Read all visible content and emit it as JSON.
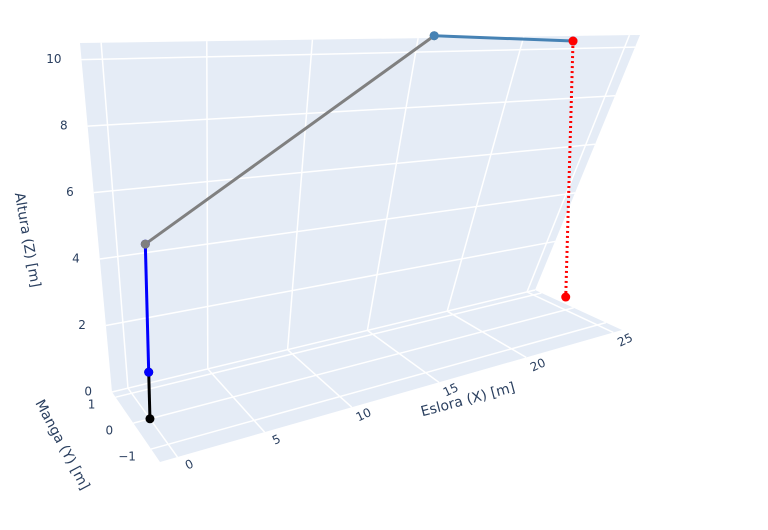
{
  "chart_data": {
    "type": "line3d",
    "x_title": "Eslora (X) [m]",
    "y_title": "Manga (Y) [m]",
    "z_title": "Altura (Z) [m]",
    "xlim": [
      -1,
      25.5
    ],
    "ylim": [
      -1.5,
      1.2
    ],
    "zlim": [
      0,
      10.5
    ],
    "xticks": [
      0,
      5,
      10,
      15,
      20,
      25
    ],
    "yticks": [
      {
        "value": -1,
        "label": "−1"
      },
      0,
      1
    ],
    "zticks": [
      0,
      2,
      4,
      6,
      8,
      10
    ],
    "grid": true,
    "series": [
      {
        "color": "#000000",
        "x": [
          0,
          0
        ],
        "y": [
          0,
          0
        ],
        "z": [
          0,
          1.2
        ]
      },
      {
        "color": "#0000ff",
        "x": [
          0,
          0
        ],
        "y": [
          0,
          0
        ],
        "z": [
          1.2,
          4.5
        ]
      },
      {
        "color": "#808080",
        "x": [
          0,
          17
        ],
        "y": [
          0,
          0
        ],
        "z": [
          4.5,
          10.3
        ]
      },
      {
        "color": "#4682b4",
        "x": [
          17,
          25
        ],
        "y": [
          0,
          0
        ],
        "z": [
          10.3,
          10.4
        ]
      },
      {
        "color": "#ff0000",
        "dash": "dot",
        "x": [
          25,
          25
        ],
        "y": [
          0,
          0
        ],
        "z": [
          10.4,
          0.5
        ]
      }
    ]
  }
}
